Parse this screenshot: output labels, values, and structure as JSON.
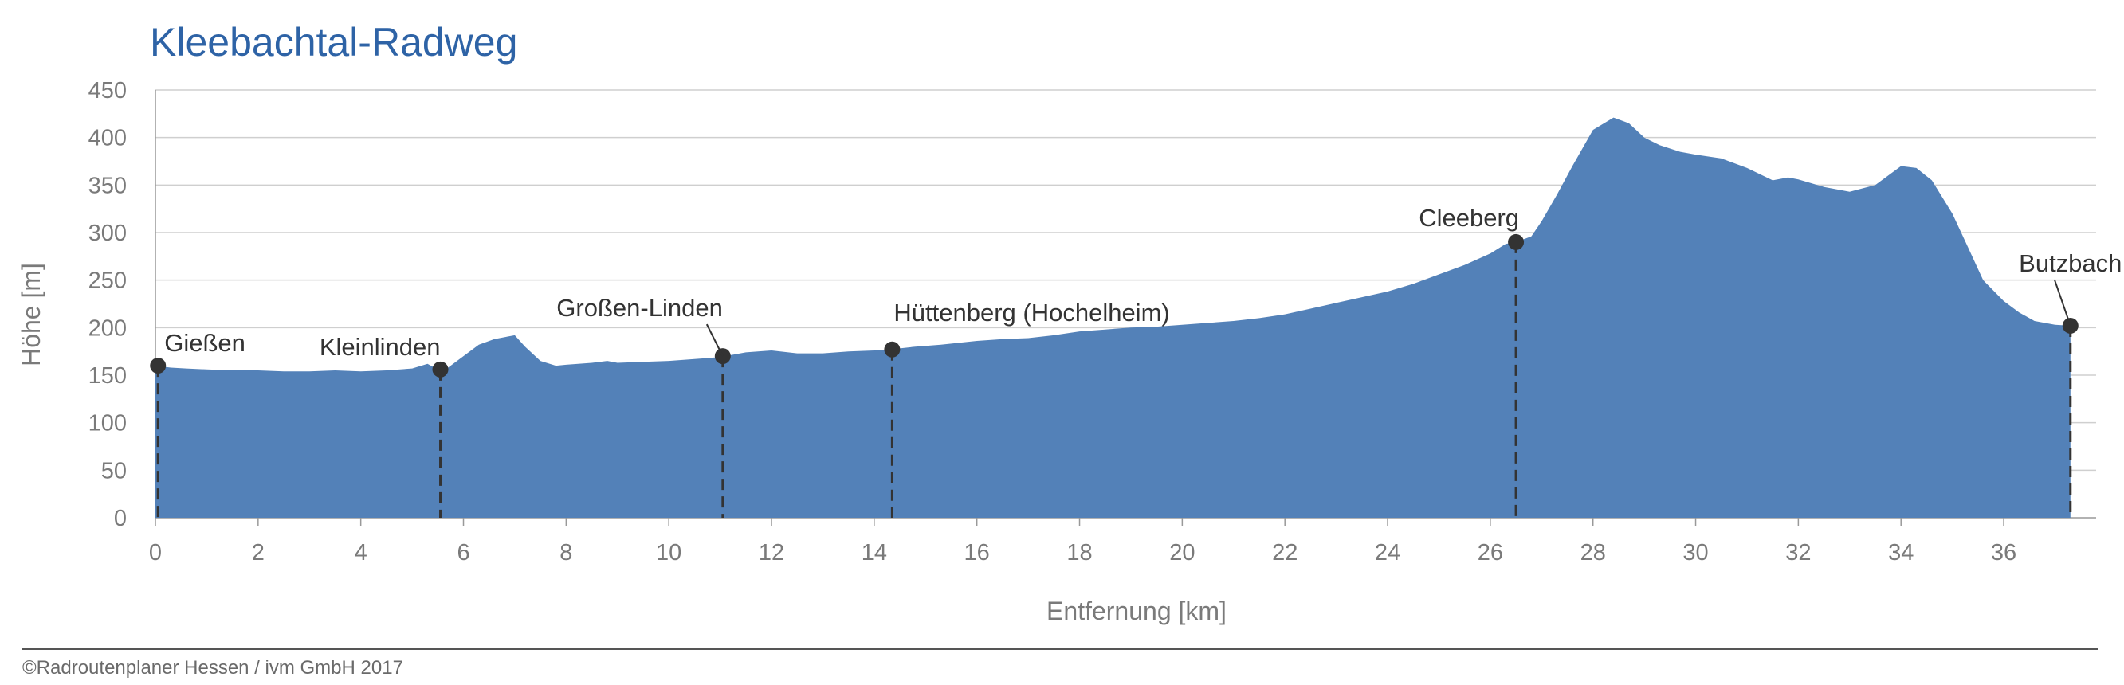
{
  "chart_data": {
    "type": "area",
    "title": "Kleebachtal-Radweg",
    "xlabel": "Entfernung [km]",
    "ylabel": "Höhe [m]",
    "xlim": [
      0,
      37.8
    ],
    "ylim": [
      0,
      450
    ],
    "x_ticks": [
      0,
      2,
      4,
      6,
      8,
      10,
      12,
      14,
      16,
      18,
      20,
      22,
      24,
      26,
      28,
      30,
      32,
      34,
      36
    ],
    "y_ticks": [
      0,
      50,
      100,
      150,
      200,
      250,
      300,
      350,
      400,
      450
    ],
    "grid": true,
    "colors": {
      "area": "#5381b8",
      "title": "#2e63a6",
      "waypoint": "#333333",
      "grid": "#cfcfcf"
    },
    "profile": {
      "x": [
        0,
        0.3,
        0.6,
        1.0,
        1.5,
        2.0,
        2.5,
        3.0,
        3.5,
        4.0,
        4.5,
        5.0,
        5.3,
        5.5,
        5.7,
        6.0,
        6.3,
        6.6,
        7.0,
        7.2,
        7.5,
        7.8,
        8.0,
        8.5,
        8.8,
        9.0,
        9.5,
        10.0,
        10.5,
        11.0,
        11.5,
        12.0,
        12.5,
        13.0,
        13.5,
        14.0,
        14.3,
        14.8,
        15.3,
        16.0,
        16.5,
        17.0,
        17.5,
        18.0,
        18.5,
        19.0,
        19.5,
        20.0,
        20.5,
        21.0,
        21.5,
        22.0,
        22.5,
        23.0,
        23.5,
        24.0,
        24.5,
        25.0,
        25.5,
        26.0,
        26.3,
        26.5,
        26.8,
        27.0,
        27.3,
        27.6,
        28.0,
        28.4,
        28.7,
        29.0,
        29.3,
        29.7,
        30.0,
        30.5,
        31.0,
        31.5,
        31.8,
        32.0,
        32.5,
        33.0,
        33.5,
        34.0,
        34.3,
        34.6,
        35.0,
        35.3,
        35.6,
        36.0,
        36.3,
        36.6,
        37.0,
        37.3
      ],
      "y": [
        160,
        158,
        157,
        156,
        155,
        155,
        154,
        154,
        155,
        154,
        155,
        157,
        162,
        156,
        158,
        170,
        182,
        188,
        192,
        180,
        165,
        160,
        161,
        163,
        165,
        163,
        164,
        165,
        167,
        169,
        174,
        176,
        173,
        173,
        175,
        176,
        177,
        180,
        182,
        186,
        188,
        189,
        192,
        196,
        198,
        200,
        201,
        203,
        205,
        207,
        210,
        214,
        220,
        226,
        232,
        238,
        246,
        256,
        266,
        278,
        288,
        290,
        296,
        312,
        340,
        370,
        408,
        421,
        415,
        400,
        392,
        385,
        382,
        378,
        368,
        355,
        358,
        356,
        348,
        343,
        350,
        370,
        368,
        355,
        320,
        285,
        250,
        228,
        216,
        207,
        203,
        202
      ]
    },
    "waypoints": [
      {
        "name": "Gießen",
        "km": 0.05,
        "elevation": 160
      },
      {
        "name": "Kleinlinden",
        "km": 5.55,
        "elevation": 156
      },
      {
        "name": "Großen-Linden",
        "km": 11.05,
        "elevation": 170
      },
      {
        "name": "Hüttenberg (Hochelheim)",
        "km": 14.35,
        "elevation": 177
      },
      {
        "name": "Cleeberg",
        "km": 26.5,
        "elevation": 290
      },
      {
        "name": "Butzbach",
        "km": 37.3,
        "elevation": 202
      }
    ]
  },
  "footer": {
    "credit": "©Radroutenplaner Hessen / ivm GmbH 2017"
  }
}
